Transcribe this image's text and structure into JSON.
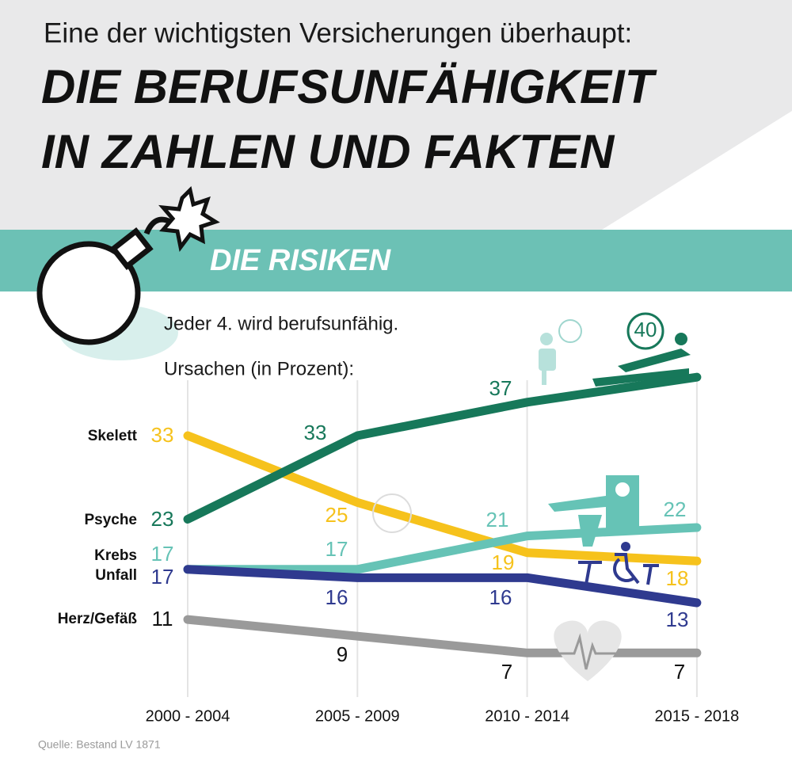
{
  "chart_data": {
    "type": "line",
    "supertitle": "Eine der wichtigsten Versicherungen überhaupt:",
    "title": [
      "DIE BERUFSUNFÄHIGKEIT",
      "IN ZAHLEN UND FAKTEN"
    ],
    "section": "DIE RISIKEN",
    "subtitle": [
      "Jeder 4. wird berufsunfähig.",
      "Ursachen (in Prozent):"
    ],
    "source": "Quelle: Bestand LV 1871",
    "categories": [
      "2000 - 2004",
      "2005 - 2009",
      "2010 - 2014",
      "2015 - 2018"
    ],
    "series": [
      {
        "name": "Skelett",
        "color": "#f6c21c",
        "values": [
          33,
          25,
          19,
          18
        ]
      },
      {
        "name": "Psyche",
        "color": "#17785a",
        "values": [
          23,
          33,
          37,
          40
        ]
      },
      {
        "name": "Krebs",
        "color": "#66c3b6",
        "values": [
          17,
          17,
          21,
          22
        ]
      },
      {
        "name": "Unfall",
        "color": "#2f3a8f",
        "values": [
          17,
          16,
          16,
          13
        ]
      },
      {
        "name": "Herz/Gefäß",
        "color": "#9a9a9a",
        "values": [
          11,
          9,
          7,
          7
        ]
      }
    ]
  }
}
